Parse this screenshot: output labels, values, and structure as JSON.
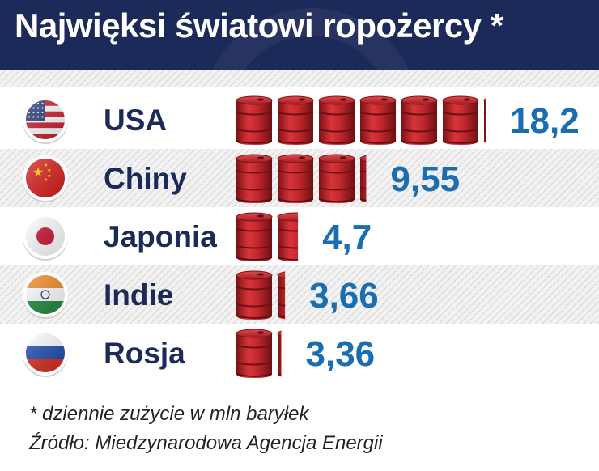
{
  "title": "Najwięksi światowi ropożercy *",
  "chart_data": {
    "type": "bar",
    "title": "Najwięksi światowi ropożercy *",
    "unit_per_icon": 3,
    "categories": [
      "USA",
      "Chiny",
      "Japonia",
      "Indie",
      "Rosja"
    ],
    "values": [
      18.2,
      9.55,
      4.7,
      3.66,
      3.36
    ],
    "value_labels": [
      "18,2",
      "9,55",
      "4,7",
      "3,66",
      "3,36"
    ],
    "flags": [
      "usa-flag-icon",
      "china-flag-icon",
      "japan-flag-icon",
      "india-flag-icon",
      "russia-flag-icon"
    ],
    "bar_icon": "oil-barrel-icon",
    "colors": {
      "label": "#1c2a5a",
      "value": "#1a6db0",
      "barrel": "#c0272d",
      "header": "#1c2a5a",
      "stripe": "#e8e8e8"
    }
  },
  "footer": {
    "note": "* dziennie zużycie w mln baryłek",
    "source": "Źródło: Miedzynarodowa Agencja Energii"
  }
}
